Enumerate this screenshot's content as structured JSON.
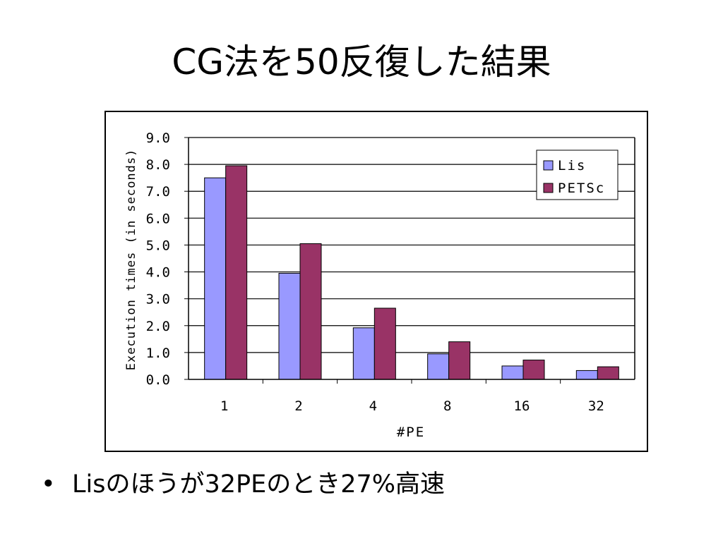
{
  "slide": {
    "title": "CG法を50反復した結果",
    "bullet_marker": "•",
    "bullet_text": "Lisのほうが32PEのとき27%高速"
  },
  "chart_data": {
    "type": "bar",
    "categories": [
      "1",
      "2",
      "4",
      "8",
      "16",
      "32"
    ],
    "series": [
      {
        "name": "Lis",
        "color": "#9999ff",
        "values": [
          7.5,
          3.95,
          1.92,
          0.95,
          0.5,
          0.33
        ]
      },
      {
        "name": "PETSc",
        "color": "#993366",
        "values": [
          7.95,
          5.05,
          2.65,
          1.4,
          0.72,
          0.47
        ]
      }
    ],
    "xlabel": "#PE",
    "ylabel": "Execution times (in seconds)",
    "ylim": [
      0,
      9
    ],
    "yticks": [
      "0.0",
      "1.0",
      "2.0",
      "3.0",
      "4.0",
      "5.0",
      "6.0",
      "7.0",
      "8.0",
      "9.0"
    ],
    "grid": true,
    "legend_position": "top-right"
  }
}
